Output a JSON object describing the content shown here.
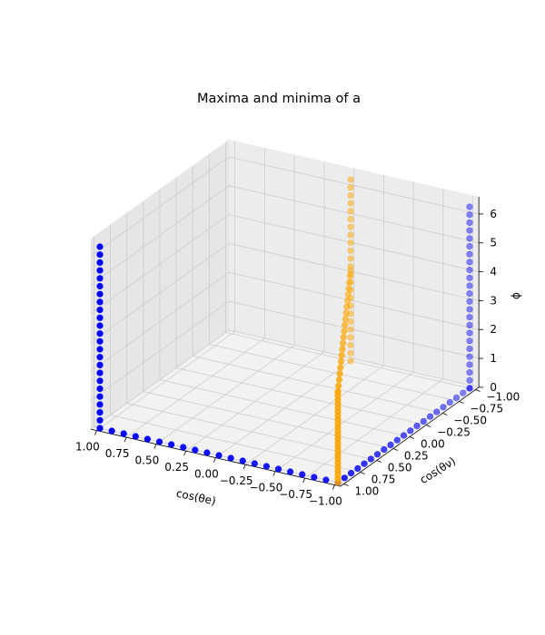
{
  "chart_data": {
    "type": "scatter",
    "title": "Maxima and minima of a",
    "xlabel": "cos(θe)",
    "ylabel": "cos(θν)",
    "zlabel": "ϕ",
    "xlim": [
      1.0,
      -1.0
    ],
    "ylim": [
      1.0,
      -1.0
    ],
    "zlim": [
      0,
      6.283
    ],
    "xticks": [
      "1.00",
      "0.75",
      "0.50",
      "0.25",
      "0.00",
      "−0.25",
      "−0.50",
      "−0.75",
      "−1.00"
    ],
    "yticks": [
      "1.00",
      "0.75",
      "0.50",
      "0.25",
      "0.00",
      "−0.25",
      "−0.50",
      "−0.75",
      "−1.00"
    ],
    "zticks": [
      "0",
      "1",
      "2",
      "3",
      "4",
      "5",
      "6"
    ],
    "grid": true,
    "series": [
      {
        "color": "#0000ff",
        "groups": [
          {
            "x": 1.0,
            "y": 1.0,
            "z": [
              0.0,
              6.283
            ],
            "n": 24
          },
          {
            "x": [
              1.0,
              -1.0
            ],
            "y": 1.0,
            "z": 0.0,
            "n": 21
          },
          {
            "x": -1.0,
            "y": [
              1.0,
              -1.0
            ],
            "z": 0.0,
            "n": 21
          },
          {
            "x": -1.0,
            "y": -1.0,
            "z": [
              0.0,
              6.283
            ],
            "n": 24
          }
        ]
      },
      {
        "color": "#ffa500",
        "groups": [
          {
            "x": 0.0,
            "y": -1.0,
            "z": [
              0.0,
              6.283
            ],
            "n": 24
          },
          {
            "x": -1.0,
            "y": 1.0,
            "z": [
              0.0,
              3.1416
            ],
            "n": 24
          },
          {
            "x": [
              0.0,
              -1.0
            ],
            "y": [
              -1.0,
              1.0
            ],
            "z": 3.1416,
            "n": 21
          }
        ]
      }
    ]
  }
}
